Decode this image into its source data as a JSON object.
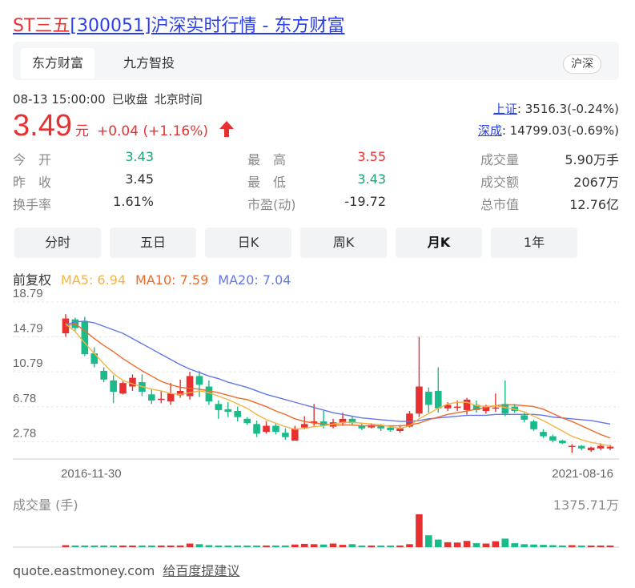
{
  "header": {
    "title_prefix": "ST三五",
    "title_rest": "[300051]沪深实时行情 - 东方财富"
  },
  "tabs": {
    "items": [
      "东方财富",
      "九方智投"
    ],
    "market_tag": "沪深"
  },
  "status": {
    "datetime": "08-13 15:00:00",
    "state": "已收盘",
    "timezone": "北京时间"
  },
  "quote": {
    "price": "3.49",
    "unit": "元",
    "change": "+0.04 (+1.16%)",
    "direction": "up"
  },
  "indices": [
    {
      "name": "上证",
      "value": ": 3516.3(-0.24%)"
    },
    {
      "name": "深成",
      "value": ": 14799.03(-0.69%)"
    }
  ],
  "stats": {
    "col1": [
      {
        "label": "今　开",
        "value": "3.43",
        "tone": "down"
      },
      {
        "label": "昨　收",
        "value": "3.45",
        "tone": "flat"
      },
      {
        "label": "换手率",
        "value": "1.61%",
        "tone": "flat"
      }
    ],
    "col2": [
      {
        "label": "最　高",
        "value": "3.55",
        "tone": "up"
      },
      {
        "label": "最　低",
        "value": "3.43",
        "tone": "down"
      },
      {
        "label": "市盈(动)",
        "value": "-19.72",
        "tone": "flat"
      }
    ],
    "col3": [
      {
        "label": "成交量",
        "value": "5.90万手",
        "tone": "flat"
      },
      {
        "label": "成交额",
        "value": "2067万",
        "tone": "flat"
      },
      {
        "label": "总市值",
        "value": "12.76亿",
        "tone": "flat"
      }
    ]
  },
  "periods": [
    "分时",
    "五日",
    "日K",
    "周K",
    "月K",
    "1年"
  ],
  "active_period": "月K",
  "ma": {
    "adjust": "前复权",
    "ma5": "MA5: 6.94",
    "ma10": "MA10: 7.59",
    "ma20": "MA20: 7.04"
  },
  "colors": {
    "up": "#e93030",
    "down": "#1aba8a",
    "ma5": "#f5b342",
    "ma10": "#ef6a2a",
    "ma20": "#6477e6",
    "link": "#2a3fe8"
  },
  "chart_data": {
    "type": "candlestick",
    "y_ticks": [
      "18.79",
      "14.79",
      "10.79",
      "6.78",
      "2.78"
    ],
    "ylim": [
      0.79,
      18.79
    ],
    "x_start_label": "2016-11-30",
    "x_end_label": "2021-08-16",
    "volume_label": "成交量 (手)",
    "volume_max_label": "1375.71万",
    "candles": [
      {
        "o": 15.2,
        "c": 16.9,
        "h": 17.4,
        "l": 14.8
      },
      {
        "o": 16.8,
        "c": 15.8,
        "h": 17.0,
        "l": 15.5
      },
      {
        "o": 16.6,
        "c": 12.8,
        "h": 17.1,
        "l": 12.6
      },
      {
        "o": 12.9,
        "c": 11.7,
        "h": 13.6,
        "l": 11.3
      },
      {
        "o": 10.9,
        "c": 9.9,
        "h": 11.3,
        "l": 9.6
      },
      {
        "o": 9.8,
        "c": 8.5,
        "h": 10.4,
        "l": 7.2
      },
      {
        "o": 8.3,
        "c": 9.5,
        "h": 9.7,
        "l": 8.2
      },
      {
        "o": 9.1,
        "c": 10.1,
        "h": 10.5,
        "l": 8.6
      },
      {
        "o": 9.6,
        "c": 8.5,
        "h": 10.5,
        "l": 8.0
      },
      {
        "o": 8.2,
        "c": 7.5,
        "h": 8.8,
        "l": 7.1
      },
      {
        "o": 7.6,
        "c": 7.7,
        "h": 8.6,
        "l": 7.2
      },
      {
        "o": 7.4,
        "c": 8.3,
        "h": 9.5,
        "l": 7.0
      },
      {
        "o": 8.1,
        "c": 8.6,
        "h": 9.9,
        "l": 7.8
      },
      {
        "o": 8.0,
        "c": 10.3,
        "h": 10.8,
        "l": 7.6
      },
      {
        "o": 10.3,
        "c": 9.3,
        "h": 10.9,
        "l": 7.9
      },
      {
        "o": 9.1,
        "c": 7.4,
        "h": 9.8,
        "l": 7.0
      },
      {
        "o": 7.1,
        "c": 6.4,
        "h": 7.5,
        "l": 5.4
      },
      {
        "o": 6.5,
        "c": 6.2,
        "h": 7.3,
        "l": 5.6
      },
      {
        "o": 6.3,
        "c": 5.6,
        "h": 6.8,
        "l": 5.1
      },
      {
        "o": 5.4,
        "c": 4.9,
        "h": 5.6,
        "l": 4.7
      },
      {
        "o": 4.8,
        "c": 3.7,
        "h": 5.2,
        "l": 3.3
      },
      {
        "o": 3.9,
        "c": 4.6,
        "h": 5.1,
        "l": 3.7
      },
      {
        "o": 4.6,
        "c": 3.9,
        "h": 4.9,
        "l": 3.6
      },
      {
        "o": 3.8,
        "c": 3.3,
        "h": 4.3,
        "l": 3.0
      },
      {
        "o": 2.9,
        "c": 4.3,
        "h": 4.6,
        "l": 2.9
      },
      {
        "o": 4.4,
        "c": 4.8,
        "h": 5.7,
        "l": 4.2
      },
      {
        "o": 4.9,
        "c": 5.1,
        "h": 7.1,
        "l": 4.6
      },
      {
        "o": 5.1,
        "c": 4.6,
        "h": 6.3,
        "l": 4.3
      },
      {
        "o": 4.5,
        "c": 5.0,
        "h": 5.4,
        "l": 4.3
      },
      {
        "o": 4.9,
        "c": 5.4,
        "h": 6.1,
        "l": 4.6
      },
      {
        "o": 5.4,
        "c": 4.9,
        "h": 5.7,
        "l": 4.6
      },
      {
        "o": 4.6,
        "c": 4.3,
        "h": 4.9,
        "l": 4.1
      },
      {
        "o": 4.4,
        "c": 4.7,
        "h": 4.9,
        "l": 4.3
      },
      {
        "o": 4.6,
        "c": 4.3,
        "h": 4.8,
        "l": 4.0
      },
      {
        "o": 4.4,
        "c": 4.1,
        "h": 4.6,
        "l": 3.9
      },
      {
        "o": 4.0,
        "c": 4.3,
        "h": 4.7,
        "l": 3.8
      },
      {
        "o": 4.5,
        "c": 6.0,
        "h": 6.3,
        "l": 4.4
      },
      {
        "o": 6.0,
        "c": 9.1,
        "h": 14.8,
        "l": 5.6
      },
      {
        "o": 8.5,
        "c": 7.0,
        "h": 9.0,
        "l": 6.1
      },
      {
        "o": 8.6,
        "c": 6.6,
        "h": 11.3,
        "l": 6.1
      },
      {
        "o": 6.6,
        "c": 7.0,
        "h": 7.3,
        "l": 6.3
      },
      {
        "o": 6.8,
        "c": 6.8,
        "h": 7.5,
        "l": 6.3
      },
      {
        "o": 6.4,
        "c": 7.6,
        "h": 7.8,
        "l": 5.9
      },
      {
        "o": 7.0,
        "c": 6.4,
        "h": 7.5,
        "l": 6.1
      },
      {
        "o": 6.3,
        "c": 6.9,
        "h": 7.0,
        "l": 6.0
      },
      {
        "o": 6.6,
        "c": 6.7,
        "h": 8.3,
        "l": 6.2
      },
      {
        "o": 7.1,
        "c": 6.0,
        "h": 9.8,
        "l": 5.7
      },
      {
        "o": 6.8,
        "c": 6.3,
        "h": 7.1,
        "l": 6.1
      },
      {
        "o": 5.8,
        "c": 5.3,
        "h": 6.1,
        "l": 5.0
      },
      {
        "o": 5.1,
        "c": 4.2,
        "h": 5.3,
        "l": 4.0
      },
      {
        "o": 3.9,
        "c": 3.4,
        "h": 4.2,
        "l": 3.2
      },
      {
        "o": 3.4,
        "c": 2.9,
        "h": 3.6,
        "l": 2.7
      },
      {
        "o": 2.9,
        "c": 2.6,
        "h": 3.0,
        "l": 2.5
      },
      {
        "o": 2.3,
        "c": 2.3,
        "h": 2.5,
        "l": 1.5
      },
      {
        "o": 2.3,
        "c": 2.0,
        "h": 2.4,
        "l": 1.8
      },
      {
        "o": 1.8,
        "c": 2.1,
        "h": 2.2,
        "l": 1.6
      },
      {
        "o": 2.0,
        "c": 2.3,
        "h": 2.6,
        "l": 1.8
      },
      {
        "o": 2.0,
        "c": 2.2,
        "h": 2.4,
        "l": 1.8
      }
    ],
    "volumes": [
      0.06,
      0.04,
      0.04,
      0.04,
      0.04,
      0.04,
      0.04,
      0.04,
      0.05,
      0.04,
      0.03,
      0.05,
      0.05,
      0.11,
      0.09,
      0.06,
      0.03,
      0.04,
      0.03,
      0.04,
      0.04,
      0.04,
      0.03,
      0.03,
      0.08,
      0.1,
      0.09,
      0.08,
      0.11,
      0.07,
      0.09,
      0.05,
      0.05,
      0.05,
      0.04,
      0.05,
      0.09,
      1.0,
      0.36,
      0.23,
      0.15,
      0.14,
      0.19,
      0.12,
      0.11,
      0.18,
      0.26,
      0.12,
      0.09,
      0.08,
      0.07,
      0.06,
      0.05,
      0.06,
      0.04,
      0.04,
      0.04,
      0.04
    ],
    "ma5": [
      16.3,
      15.4,
      14.1,
      12.9,
      11.7,
      10.6,
      9.8,
      9.4,
      9.1,
      8.8,
      8.6,
      8.3,
      8.2,
      8.4,
      8.6,
      8.4,
      8.0,
      7.6,
      7.1,
      6.6,
      5.9,
      5.3,
      4.9,
      4.5,
      4.2,
      4.3,
      4.5,
      4.6,
      4.8,
      5.0,
      5.0,
      4.9,
      4.8,
      4.7,
      4.5,
      4.3,
      4.6,
      5.4,
      6.0,
      6.6,
      7.1,
      7.3,
      7.3,
      6.9,
      6.8,
      6.9,
      6.7,
      6.5,
      6.2,
      5.7,
      5.2,
      4.6,
      4.0,
      3.4,
      3.0,
      2.7,
      2.5,
      2.3
    ],
    "ma10": [
      16.0,
      16.3,
      15.5,
      14.6,
      13.8,
      13.1,
      12.3,
      11.6,
      10.9,
      10.3,
      9.7,
      9.3,
      9.0,
      8.9,
      8.8,
      8.6,
      8.4,
      8.1,
      7.8,
      7.6,
      7.2,
      6.8,
      6.3,
      5.9,
      5.4,
      5.1,
      4.9,
      4.8,
      4.7,
      4.7,
      4.7,
      4.6,
      4.6,
      4.6,
      4.6,
      4.6,
      4.7,
      4.9,
      5.3,
      5.6,
      5.9,
      6.1,
      6.3,
      6.5,
      6.7,
      6.9,
      7.0,
      7.0,
      6.9,
      6.8,
      6.5,
      6.0,
      5.5,
      5.1,
      4.6,
      4.1,
      3.6,
      3.2
    ],
    "ma20": [
      16.2,
      16.5,
      16.6,
      16.4,
      16.0,
      15.6,
      15.2,
      14.6,
      14.0,
      13.4,
      12.8,
      12.2,
      11.6,
      11.1,
      10.7,
      10.3,
      10.0,
      9.6,
      9.3,
      9.0,
      8.6,
      8.2,
      7.9,
      7.6,
      7.3,
      7.0,
      6.7,
      6.4,
      6.1,
      5.9,
      5.7,
      5.5,
      5.4,
      5.3,
      5.2,
      5.1,
      5.1,
      5.2,
      5.4,
      5.5,
      5.6,
      5.7,
      5.8,
      5.8,
      5.8,
      5.9,
      5.9,
      5.9,
      5.9,
      5.9,
      5.8,
      5.6,
      5.5,
      5.4,
      5.3,
      5.2,
      5.0,
      4.8
    ]
  },
  "footer": {
    "site": "quote.eastmoney.com",
    "feedback": "给百度提建议"
  }
}
